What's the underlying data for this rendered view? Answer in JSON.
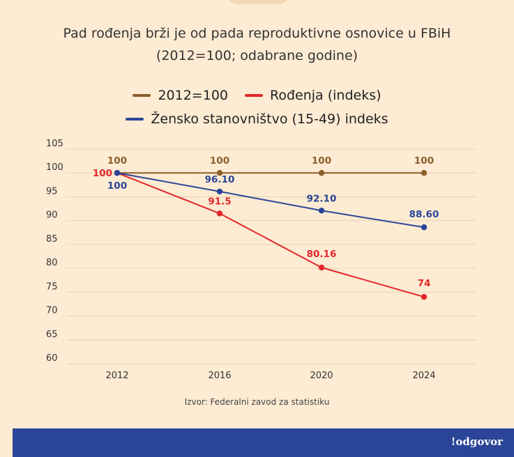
{
  "title_line1": "Pad rođenja brži je od pada reproduktivne osnovice u FBiH",
  "title_line2": "(2012=100; odabrane godine)",
  "source": "Izvor: Federalni zavod za statistiku",
  "brand": "!odgovor",
  "colors": {
    "background": "#fdebd3",
    "baseline": "#8c5e2a",
    "births": "#e3262b",
    "women": "#2a4597",
    "footer": "#2a4597"
  },
  "chart_data": {
    "type": "line",
    "title": "Pad rođenja brži je od pada reproduktivne osnovice u FBiH",
    "subtitle": "(2012=100; odabrane godine)",
    "categories": [
      "2012",
      "2016",
      "2020",
      "2024"
    ],
    "ylim": [
      60,
      105
    ],
    "yticks": [
      "60",
      "65",
      "70",
      "75",
      "80",
      "85",
      "90",
      "95",
      "100",
      "105"
    ],
    "grid": true,
    "xlabel": "",
    "ylabel": "",
    "legend_position": "top-center",
    "series": [
      {
        "name": "2012=100",
        "values": [
          100,
          100,
          100,
          100
        ],
        "labels": [
          "100",
          "100",
          "100",
          "100"
        ],
        "color": "#8c5e2a"
      },
      {
        "name": "Rođenja (indeks)",
        "values": [
          100,
          91.5,
          80.16,
          74
        ],
        "labels": [
          "100",
          "91.5",
          "80.16",
          "74"
        ],
        "color": "#e3262b"
      },
      {
        "name": "Žensko stanovništvo (15-49) indeks",
        "values": [
          100,
          96.1,
          92.1,
          88.6
        ],
        "labels": [
          "100",
          "96.10",
          "92.10",
          "88.60"
        ],
        "color": "#2a4597"
      }
    ]
  }
}
